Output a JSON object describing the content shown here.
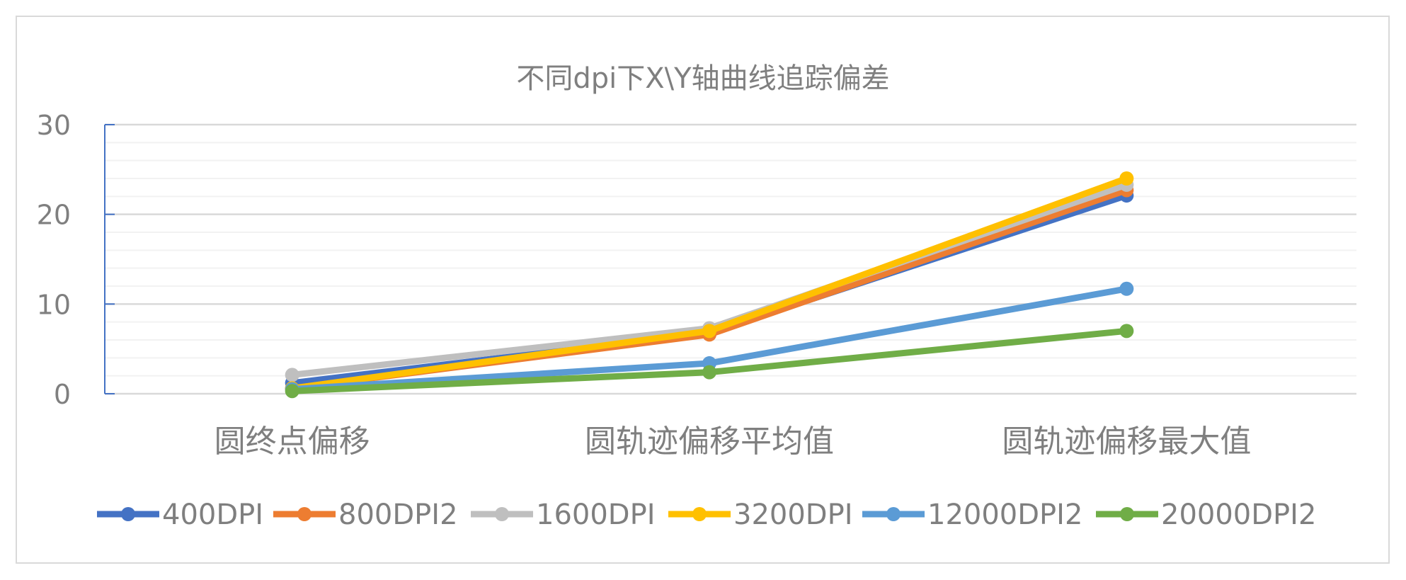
{
  "chart_data": {
    "type": "line",
    "title": "不同dpi下X\\Y轴曲线追踪偏差",
    "xlabel": "",
    "ylabel": "",
    "categories": [
      "圆终点偏移",
      "圆轨迹偏移平均值",
      "圆轨迹偏移最大值"
    ],
    "ylim": [
      0,
      30
    ],
    "yticks": [
      "0",
      "10",
      "20",
      "30"
    ],
    "major_step": 10,
    "minor_step": 2,
    "grid": true,
    "legend_position": "bottom",
    "markers": true,
    "series": [
      {
        "name": "400DPI",
        "color": "#4472C4",
        "values": [
          1.2,
          6.8,
          22.1
        ]
      },
      {
        "name": "800DPI2",
        "color": "#ED7D31",
        "values": [
          0.6,
          6.6,
          22.7
        ]
      },
      {
        "name": "1600DPI",
        "color": "#BFBFBF",
        "values": [
          2.1,
          7.3,
          23.3
        ]
      },
      {
        "name": "3200DPI",
        "color": "#FFC000",
        "values": [
          0.6,
          7.0,
          24.0
        ]
      },
      {
        "name": "12000DPI2",
        "color": "#5B9BD5",
        "values": [
          0.5,
          3.4,
          11.7
        ]
      },
      {
        "name": "20000DPI2",
        "color": "#70AD47",
        "values": [
          0.3,
          2.4,
          7.0
        ]
      }
    ]
  }
}
